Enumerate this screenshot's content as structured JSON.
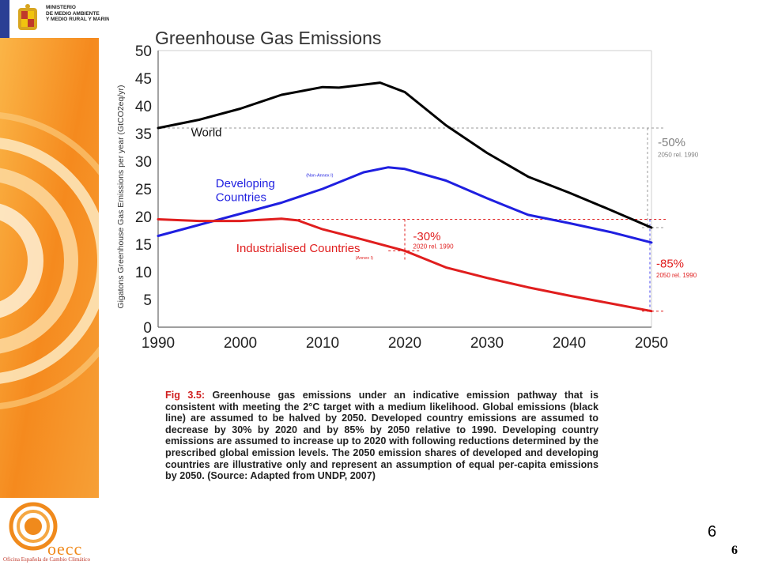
{
  "header": {
    "ministry_text": "MINISTERIO\nDE MEDIO AMBIENTE\nY MEDIO RURAL Y MARINO"
  },
  "logo": {
    "name": "oecc",
    "subtitle": "Oficina Española de Cambio Climático"
  },
  "chart_data": {
    "type": "line",
    "title": "Greenhouse Gas Emissions",
    "ylabel": "Gigatons Greenhouse Gas Emissions per year (GtCO2eq/yr)",
    "xlabel": "",
    "xlim": [
      1990,
      2050
    ],
    "ylim": [
      0,
      50
    ],
    "x_ticks": [
      1990,
      2000,
      2010,
      2020,
      2030,
      2040,
      2050
    ],
    "y_ticks": [
      0,
      5,
      10,
      15,
      20,
      25,
      30,
      35,
      40,
      45,
      50
    ],
    "grid": false,
    "series": [
      {
        "name": "World",
        "color": "#000000",
        "x": [
          1990,
          1995,
          2000,
          2005,
          2010,
          2012,
          2017,
          2020,
          2025,
          2030,
          2035,
          2040,
          2045,
          2050
        ],
        "y": [
          36,
          37.5,
          39.5,
          42,
          43.4,
          43.3,
          44.2,
          42.5,
          36.5,
          31.5,
          27.2,
          24.3,
          21.2,
          18
        ]
      },
      {
        "name": "Developing Countries",
        "sublabel": "(Non-Annex I)",
        "color": "#1f1fe0",
        "x": [
          1990,
          1995,
          2000,
          2005,
          2010,
          2015,
          2018,
          2020,
          2025,
          2030,
          2035,
          2040,
          2045,
          2050
        ],
        "y": [
          16.5,
          18.5,
          20.5,
          22.5,
          25,
          28,
          28.9,
          28.6,
          26.5,
          23.3,
          20.3,
          18.8,
          17.2,
          15.3
        ]
      },
      {
        "name": "Industrialised Countries",
        "sublabel": "(Annex I)",
        "color": "#e01e1e",
        "x": [
          1990,
          1995,
          2000,
          2005,
          2007,
          2010,
          2015,
          2020,
          2025,
          2030,
          2035,
          2040,
          2045,
          2050
        ],
        "y": [
          19.5,
          19.2,
          19.2,
          19.6,
          19.3,
          17.7,
          15.8,
          13.8,
          10.8,
          8.9,
          7.2,
          5.7,
          4.3,
          2.9
        ]
      }
    ],
    "annotations": [
      {
        "text": "-50%",
        "sub": "2050 rel. 1990",
        "color": "#808080"
      },
      {
        "text": "-30%",
        "sub": "2020 rel. 1990",
        "color": "#e01e1e"
      },
      {
        "text": "-85%",
        "sub": "2050 rel. 1990",
        "color": "#e01e1e"
      }
    ]
  },
  "caption": {
    "fig_label": "Fig 3.5:",
    "text": " Greenhouse gas emissions under an indicative emission pathway that is consistent with meeting the 2°C target with a medium likelihood. Global emissions (black line) are assumed to be halved by 2050. Developed country emissions are assumed to decrease by 30% by 2020 and by 85% by 2050 relative to 1990. Developing country emissions are assumed to increase up to 2020 with following reductions determined by the prescribed global emission levels. The 2050 emission shares of developed and developing countries are illustrative only and represent an assumption of equal per-capita emissions by 2050. (Source: Adapted from UNDP, 2007)"
  },
  "page": {
    "number_a": "6",
    "number_b": "6"
  }
}
